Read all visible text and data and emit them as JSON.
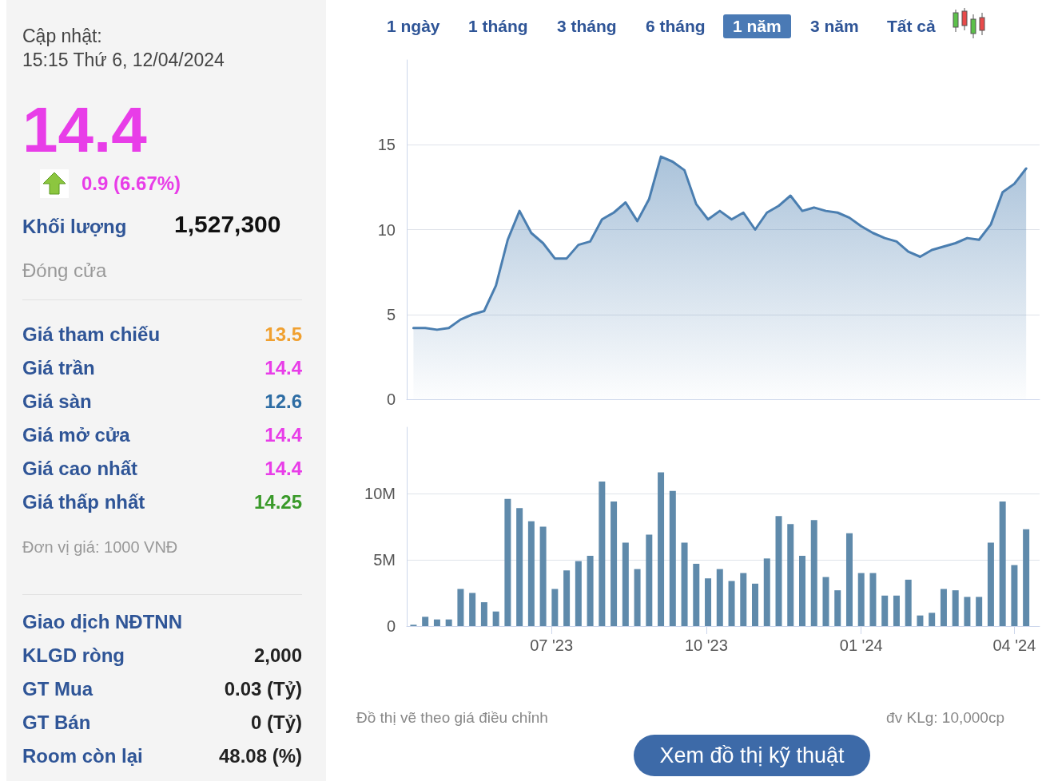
{
  "chart_data": [
    {
      "type": "other",
      "annotations": [
        "Cập nhật:",
        "15:15 Thứ 6, 12/04/2024",
        "14.4",
        "0.9 (6.67%)",
        "Khối lượng",
        "1,527,300",
        "Đóng cửa",
        "Giá tham chiếu",
        "13.5",
        "Giá trần",
        "14.4",
        "Giá sàn",
        "12.6",
        "Giá mở cửa",
        "14.4",
        "Giá cao nhất",
        "14.4",
        "Giá thấp nhất",
        "14.25",
        "Đơn vị giá: 1000 VNĐ",
        "Giao dịch NĐTNN",
        "KLGD ròng",
        "2,000",
        "GT Mua",
        "0.03 (Tỷ)",
        "GT Bán",
        "0 (Tỷ)",
        "Room còn lại",
        "48.08 (%)"
      ]
    },
    {
      "type": "area",
      "annotations": [
        "1 ngày",
        "1 tháng",
        "3 tháng",
        "6 tháng",
        "1 năm",
        "3 năm",
        "Tất cả",
        "Đồ thị vẽ theo giá điều chỉnh"
      ],
      "x": [
        "2023-04-10",
        "2023-04-17",
        "2023-04-24",
        "2023-05-01",
        "2023-05-08",
        "2023-05-15",
        "2023-05-22",
        "2023-05-29",
        "2023-06-05",
        "2023-06-12",
        "2023-06-19",
        "2023-06-26",
        "2023-07-03",
        "2023-07-10",
        "2023-07-17",
        "2023-07-24",
        "2023-07-31",
        "2023-08-07",
        "2023-08-14",
        "2023-08-21",
        "2023-08-28",
        "2023-09-04",
        "2023-09-11",
        "2023-09-18",
        "2023-09-25",
        "2023-10-02",
        "2023-10-09",
        "2023-10-16",
        "2023-10-23",
        "2023-10-30",
        "2023-11-06",
        "2023-11-13",
        "2023-11-20",
        "2023-11-27",
        "2023-12-04",
        "2023-12-11",
        "2023-12-18",
        "2023-12-25",
        "2024-01-01",
        "2024-01-08",
        "2024-01-15",
        "2024-01-22",
        "2024-01-29",
        "2024-02-05",
        "2024-02-12",
        "2024-02-19",
        "2024-02-26",
        "2024-03-04",
        "2024-03-11",
        "2024-03-18",
        "2024-03-25",
        "2024-04-01",
        "2024-04-08"
      ],
      "series": [
        {
          "color": "#4a7eb0",
          "values": [
            4.2,
            4.2,
            4.1,
            4.2,
            4.7,
            5.0,
            5.2,
            6.7,
            9.4,
            11.1,
            9.8,
            9.2,
            8.3,
            8.3,
            9.1,
            9.3,
            10.6,
            11.0,
            11.6,
            10.5,
            11.8,
            14.3,
            14.0,
            13.5,
            11.5,
            10.6,
            11.1,
            10.6,
            11.0,
            10.0,
            11.0,
            11.4,
            12.0,
            11.1,
            11.3,
            11.1,
            11.0,
            10.7,
            10.2,
            9.8,
            9.5,
            9.3,
            8.7,
            8.4,
            8.8,
            9.0,
            9.2,
            9.5,
            9.4,
            10.3,
            12.2,
            12.7,
            13.6
          ]
        }
      ],
      "xlim": [
        "2023-04-06",
        "2024-04-16"
      ],
      "ylim": [
        0,
        20
      ],
      "yticks": [
        0,
        5,
        10,
        15
      ],
      "grid": "y",
      "tick_labels": "y",
      "marker": "none",
      "line_style": "solid"
    },
    {
      "type": "bar",
      "annotations": [
        "đv KLg: 10,000cp",
        "Xem đồ thị kỹ thuật"
      ],
      "x": [
        "2023-04-10",
        "2023-04-17",
        "2023-04-24",
        "2023-05-01",
        "2023-05-08",
        "2023-05-15",
        "2023-05-22",
        "2023-05-29",
        "2023-06-05",
        "2023-06-12",
        "2023-06-19",
        "2023-06-26",
        "2023-07-03",
        "2023-07-10",
        "2023-07-17",
        "2023-07-24",
        "2023-07-31",
        "2023-08-07",
        "2023-08-14",
        "2023-08-21",
        "2023-08-28",
        "2023-09-04",
        "2023-09-11",
        "2023-09-18",
        "2023-09-25",
        "2023-10-02",
        "2023-10-09",
        "2023-10-16",
        "2023-10-23",
        "2023-10-30",
        "2023-11-06",
        "2023-11-13",
        "2023-11-20",
        "2023-11-27",
        "2023-12-04",
        "2023-12-11",
        "2023-12-18",
        "2023-12-25",
        "2024-01-01",
        "2024-01-08",
        "2024-01-15",
        "2024-01-22",
        "2024-01-29",
        "2024-02-05",
        "2024-02-12",
        "2024-02-19",
        "2024-02-26",
        "2024-03-04",
        "2024-03-11",
        "2024-03-18",
        "2024-03-25",
        "2024-04-01",
        "2024-04-08"
      ],
      "series": [
        {
          "color": "#5f8aab",
          "values": [
            0.1,
            0.7,
            0.5,
            0.5,
            2.8,
            2.5,
            1.8,
            1.1,
            9.6,
            8.9,
            7.9,
            7.5,
            2.8,
            4.2,
            4.9,
            5.3,
            10.9,
            9.4,
            6.3,
            4.3,
            6.9,
            11.6,
            10.2,
            6.3,
            4.7,
            3.6,
            4.3,
            3.4,
            4.0,
            3.2,
            5.1,
            8.3,
            7.7,
            5.3,
            8.0,
            3.7,
            2.7,
            7.0,
            4.0,
            4.0,
            2.3,
            2.3,
            3.5,
            0.8,
            1.0,
            2.8,
            2.7,
            2.2,
            2.2,
            6.3,
            9.4,
            4.6,
            7.3
          ]
        }
      ],
      "xlim": [
        "2023-04-06",
        "2024-04-16"
      ],
      "xticks": [
        {
          "value": "2023-07-01",
          "label": "07 '23"
        },
        {
          "value": "2023-10-01",
          "label": "10 '23"
        },
        {
          "value": "2024-01-01",
          "label": "01 '24"
        },
        {
          "value": "2024-04-01",
          "label": "04 '24"
        }
      ],
      "ylim": [
        0,
        15
      ],
      "yticks": [
        {
          "value": 0,
          "label": "0"
        },
        {
          "value": 5,
          "label": "5M"
        },
        {
          "value": 10,
          "label": "10M"
        }
      ],
      "grid": "y"
    }
  ]
}
